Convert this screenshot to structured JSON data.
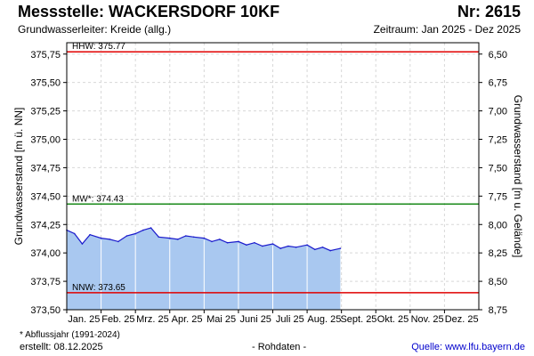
{
  "header": {
    "title": "Messstelle: WACKERSDORF 10KF",
    "station_nr": "Nr: 2615",
    "aquifer": "Grundwasserleiter: Kreide (allg.)",
    "period": "Zeitraum: Jan 2025 - Dez 2025"
  },
  "footer": {
    "footnote": "* Abflussjahr (1991-2024)",
    "created": "erstellt:  08.12.2025",
    "raw_data": "- Rohdaten -",
    "source": "Quelle: www.lfu.bayern.de"
  },
  "colors": {
    "series_line": "#1a1acc",
    "series_fill": "#a9c8f0",
    "hhw_line": "#e00000",
    "mw_line": "#1a8a1a",
    "nnw_line": "#e00000",
    "grid": "#d8d8d8",
    "month_separator": "#ffffff"
  },
  "chart_data": {
    "type": "area",
    "ylabel": "Grundwasserstand [m ü. NN]",
    "y2label": "Grundwasserstand [m u. Gelände]",
    "ylim": [
      373.5,
      375.85
    ],
    "y_ticks": [
      373.5,
      373.75,
      374.0,
      374.25,
      374.5,
      374.75,
      375.0,
      375.25,
      375.5,
      375.75
    ],
    "y_tick_labels": [
      "373,50",
      "373,75",
      "374,00",
      "374,25",
      "374,50",
      "374,75",
      "375,00",
      "375,25",
      "375,50",
      "375,75"
    ],
    "y2_ticks": [
      {
        "level": 373.5,
        "label": "8,75"
      },
      {
        "level": 373.75,
        "label": "8,50"
      },
      {
        "level": 374.0,
        "label": "8,25"
      },
      {
        "level": 374.25,
        "label": "8,00"
      },
      {
        "level": 374.5,
        "label": "7,75"
      },
      {
        "level": 374.75,
        "label": "7,50"
      },
      {
        "level": 375.0,
        "label": "7,25"
      },
      {
        "level": 375.25,
        "label": "7,00"
      },
      {
        "level": 375.5,
        "label": "6,75"
      },
      {
        "level": 375.75,
        "label": "6,50"
      }
    ],
    "months": [
      "Jan. 25",
      "Feb. 25",
      "Mrz. 25",
      "Apr. 25",
      "Mai 25",
      "Juni 25",
      "Juli 25",
      "Aug. 25",
      "Sept. 25",
      "Okt. 25",
      "Nov. 25",
      "Dez. 25"
    ],
    "reference_lines": [
      {
        "key": "hhw",
        "label": "HHW: 375.77",
        "value": 375.77
      },
      {
        "key": "mw",
        "label": "MW*: 374.43",
        "value": 374.43
      },
      {
        "key": "nnw",
        "label": "NNW: 373.65",
        "value": 373.65
      }
    ],
    "series": [
      {
        "x": [
          "2025-01-01",
          "2025-01-08",
          "2025-01-15",
          "2025-01-22",
          "2025-02-01",
          "2025-02-08",
          "2025-02-15",
          "2025-02-22",
          "2025-03-01",
          "2025-03-08",
          "2025-03-15",
          "2025-03-22",
          "2025-04-01",
          "2025-04-08",
          "2025-04-15",
          "2025-04-22",
          "2025-05-01",
          "2025-05-08",
          "2025-05-15",
          "2025-05-22",
          "2025-06-01",
          "2025-06-08",
          "2025-06-15",
          "2025-06-22",
          "2025-07-01",
          "2025-07-08",
          "2025-07-15",
          "2025-07-22",
          "2025-08-01",
          "2025-08-08",
          "2025-08-15",
          "2025-08-22",
          "2025-08-31"
        ],
        "values": [
          374.2,
          374.17,
          374.08,
          374.16,
          374.13,
          374.12,
          374.1,
          374.15,
          374.17,
          374.2,
          374.22,
          374.14,
          374.13,
          374.12,
          374.15,
          374.14,
          374.13,
          374.1,
          374.12,
          374.09,
          374.1,
          374.07,
          374.09,
          374.06,
          374.08,
          374.04,
          374.06,
          374.05,
          374.07,
          374.03,
          374.05,
          374.02,
          374.04
        ]
      }
    ]
  }
}
